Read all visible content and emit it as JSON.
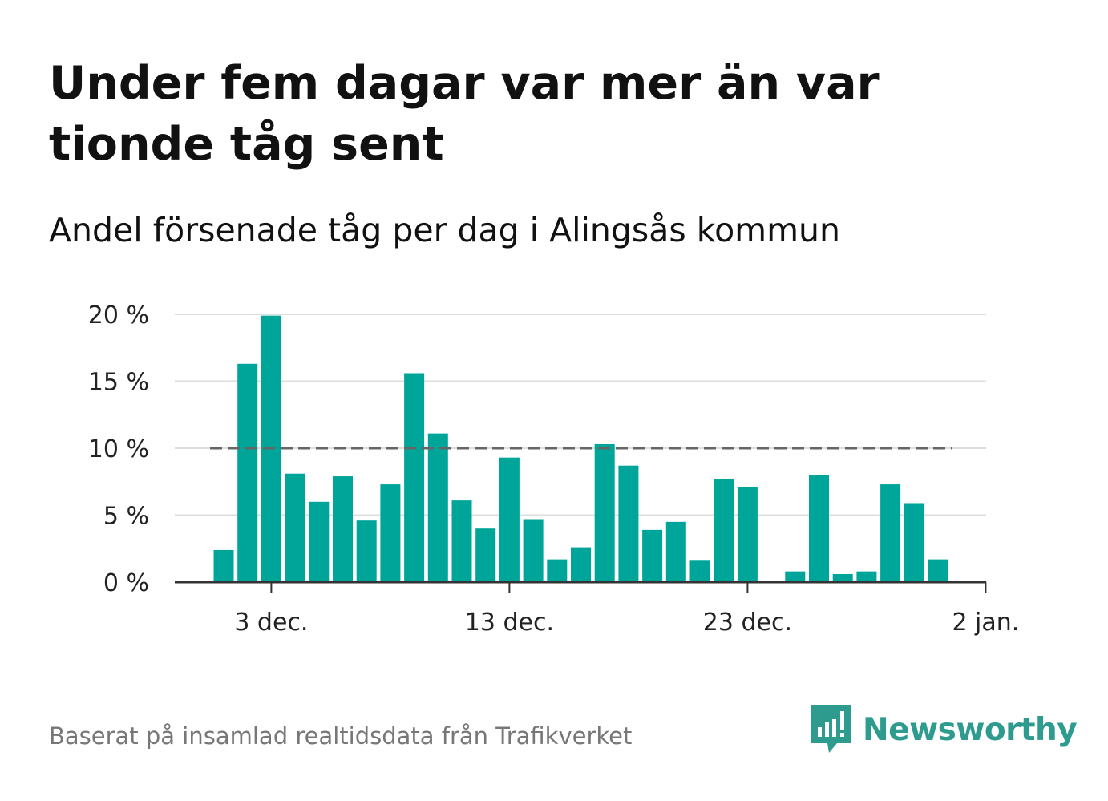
{
  "header": {
    "title": "Under fem dagar var mer än var tionde tåg sent",
    "subtitle": "Andel försenade tåg per dag i Alingsås kommun"
  },
  "footer": {
    "source": "Baserat på insamlad realtidsdata från Trafikverket",
    "brand": "Newsworthy"
  },
  "colors": {
    "bar": "#00a599",
    "reference_line": "#666666",
    "grid": "#dddddd",
    "axis": "#333333",
    "brand": "#2e9b8f"
  },
  "chart_data": {
    "type": "bar",
    "x": [
      "1 dec.",
      "2 dec.",
      "3 dec.",
      "4 dec.",
      "5 dec.",
      "6 dec.",
      "7 dec.",
      "8 dec.",
      "9 dec.",
      "10 dec.",
      "11 dec.",
      "12 dec.",
      "13 dec.",
      "14 dec.",
      "15 dec.",
      "16 dec.",
      "17 dec.",
      "18 dec.",
      "19 dec.",
      "20 dec.",
      "21 dec.",
      "22 dec.",
      "23 dec.",
      "24 dec.",
      "25 dec.",
      "26 dec.",
      "27 dec.",
      "28 dec.",
      "29 dec.",
      "30 dec.",
      "31 dec."
    ],
    "values": [
      2.4,
      16.3,
      19.9,
      8.1,
      6.0,
      7.9,
      4.6,
      7.3,
      15.6,
      11.1,
      6.1,
      4.0,
      9.3,
      4.7,
      1.7,
      2.6,
      10.3,
      8.7,
      3.9,
      4.5,
      1.6,
      7.7,
      7.1,
      0,
      0.8,
      8.0,
      0.6,
      0.8,
      7.3,
      5.9,
      1.7
    ],
    "reference_value": 10,
    "y_ticks": [
      0,
      5,
      10,
      15,
      20
    ],
    "y_tick_labels": [
      "0 %",
      "5 %",
      "10 %",
      "15 %",
      "20 %"
    ],
    "x_ticks": [
      {
        "index": 2,
        "label": "3 dec."
      },
      {
        "index": 12,
        "label": "13 dec."
      },
      {
        "index": 22,
        "label": "23 dec."
      },
      {
        "index": 32,
        "label": "2 jan."
      }
    ],
    "ylim": [
      0,
      20
    ],
    "xlabel": "",
    "ylabel": "",
    "grid": true
  }
}
